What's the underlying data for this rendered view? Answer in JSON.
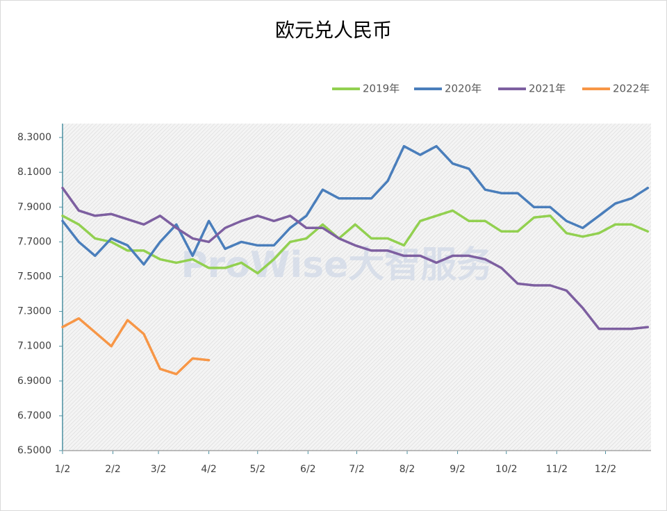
{
  "chart_data": {
    "type": "line",
    "title": "欧元兑人民币",
    "watermark": "ProWise大智服务",
    "x": [
      0,
      10,
      20,
      30,
      40,
      50,
      60,
      70,
      80,
      90,
      100,
      110,
      120,
      130,
      140,
      150,
      160,
      170,
      180,
      190,
      200,
      210,
      220,
      230,
      240,
      250,
      260,
      270,
      280,
      290,
      300,
      310,
      320,
      330,
      340,
      350,
      360
    ],
    "xlim": [
      0,
      362
    ],
    "xticks": [
      {
        "value": 0,
        "label": "1/2"
      },
      {
        "value": 31,
        "label": "2/2"
      },
      {
        "value": 59,
        "label": "3/2"
      },
      {
        "value": 90,
        "label": "4/2"
      },
      {
        "value": 120,
        "label": "5/2"
      },
      {
        "value": 151,
        "label": "6/2"
      },
      {
        "value": 181,
        "label": "7/2"
      },
      {
        "value": 212,
        "label": "8/2"
      },
      {
        "value": 243,
        "label": "9/2"
      },
      {
        "value": 273,
        "label": "10/2"
      },
      {
        "value": 304,
        "label": "11/2"
      },
      {
        "value": 334,
        "label": "12/2"
      }
    ],
    "ylim": [
      6.5,
      8.38
    ],
    "yticks": [
      {
        "value": 6.5,
        "label": "6.5000"
      },
      {
        "value": 6.7,
        "label": "6.7000"
      },
      {
        "value": 6.9,
        "label": "6.9000"
      },
      {
        "value": 7.1,
        "label": "7.1000"
      },
      {
        "value": 7.3,
        "label": "7.3000"
      },
      {
        "value": 7.5,
        "label": "7.5000"
      },
      {
        "value": 7.7,
        "label": "7.7000"
      },
      {
        "value": 7.9,
        "label": "7.9000"
      },
      {
        "value": 8.1,
        "label": "8.1000"
      },
      {
        "value": 8.3,
        "label": "8.3000"
      }
    ],
    "series": [
      {
        "name": "2019年",
        "color": "#92d050",
        "values": [
          7.85,
          7.8,
          7.72,
          7.7,
          7.65,
          7.65,
          7.6,
          7.58,
          7.6,
          7.55,
          7.55,
          7.58,
          7.52,
          7.6,
          7.7,
          7.72,
          7.8,
          7.72,
          7.8,
          7.72,
          7.72,
          7.68,
          7.82,
          7.85,
          7.88,
          7.82,
          7.82,
          7.76,
          7.76,
          7.84,
          7.85,
          7.75,
          7.73,
          7.75,
          7.8,
          7.8,
          7.76
        ]
      },
      {
        "name": "2020年",
        "color": "#4a7ebb",
        "values": [
          7.82,
          7.7,
          7.62,
          7.72,
          7.68,
          7.57,
          7.7,
          7.8,
          7.62,
          7.82,
          7.66,
          7.7,
          7.68,
          7.68,
          7.78,
          7.85,
          8.0,
          7.95,
          7.95,
          7.95,
          8.05,
          8.25,
          8.2,
          8.25,
          8.15,
          8.12,
          8.0,
          7.98,
          7.98,
          7.9,
          7.9,
          7.82,
          7.78,
          7.85,
          7.92,
          7.95,
          8.01
        ]
      },
      {
        "name": "2021年",
        "color": "#7d5fa0",
        "values": [
          8.01,
          7.88,
          7.85,
          7.86,
          7.83,
          7.8,
          7.85,
          7.78,
          7.72,
          7.7,
          7.78,
          7.82,
          7.85,
          7.82,
          7.85,
          7.78,
          7.78,
          7.72,
          7.68,
          7.65,
          7.65,
          7.62,
          7.62,
          7.58,
          7.62,
          7.62,
          7.6,
          7.55,
          7.46,
          7.45,
          7.45,
          7.42,
          7.32,
          7.2,
          7.2,
          7.2,
          7.21
        ]
      },
      {
        "name": "2022年",
        "color": "#f79646",
        "values": [
          7.21,
          7.26,
          7.18,
          7.1,
          7.25,
          7.17,
          6.97,
          6.94,
          7.03,
          7.02,
          null,
          null,
          null,
          null,
          null,
          null,
          null,
          null,
          null,
          null,
          null,
          null,
          null,
          null,
          null,
          null,
          null,
          null,
          null,
          null,
          null,
          null,
          null,
          null,
          null,
          null,
          null
        ]
      }
    ]
  }
}
